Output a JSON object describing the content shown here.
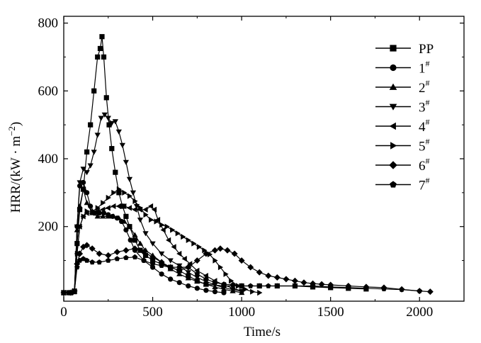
{
  "chart_data": {
    "type": "line",
    "title": "",
    "xlabel": "Time",
    "xlabel_unit": "s",
    "ylabel": "HRR/(kW · m",
    "ylabel_exp": "−2",
    "ylabel_close": ")",
    "xlim": [
      0,
      2250
    ],
    "ylim": [
      -20,
      820
    ],
    "xticks": [
      0,
      500,
      1000,
      1500,
      2000
    ],
    "yticks": [
      200,
      400,
      600,
      800
    ],
    "grid": false,
    "legend_position": "top-right",
    "series": [
      {
        "name": "PP",
        "sup": "",
        "marker": "square",
        "points": [
          [
            0,
            5
          ],
          [
            30,
            5
          ],
          [
            60,
            8
          ],
          [
            75,
            150
          ],
          [
            90,
            250
          ],
          [
            110,
            310
          ],
          [
            130,
            420
          ],
          [
            150,
            500
          ],
          [
            170,
            600
          ],
          [
            190,
            700
          ],
          [
            205,
            725
          ],
          [
            215,
            760
          ],
          [
            225,
            700
          ],
          [
            240,
            580
          ],
          [
            255,
            500
          ],
          [
            270,
            430
          ],
          [
            290,
            360
          ],
          [
            310,
            300
          ],
          [
            330,
            260
          ],
          [
            350,
            230
          ],
          [
            370,
            200
          ],
          [
            400,
            160
          ],
          [
            430,
            130
          ],
          [
            460,
            115
          ],
          [
            500,
            100
          ],
          [
            550,
            90
          ],
          [
            600,
            80
          ],
          [
            650,
            70
          ],
          [
            700,
            55
          ],
          [
            750,
            40
          ],
          [
            800,
            30
          ],
          [
            900,
            25
          ],
          [
            1000,
            25
          ],
          [
            1100,
            25
          ],
          [
            1200,
            25
          ],
          [
            1300,
            25
          ],
          [
            1400,
            22
          ],
          [
            1500,
            20
          ],
          [
            1600,
            18
          ],
          [
            1700,
            16
          ]
        ]
      },
      {
        "name": "1",
        "sup": "#",
        "marker": "circle",
        "points": [
          [
            0,
            5
          ],
          [
            40,
            5
          ],
          [
            60,
            10
          ],
          [
            75,
            200
          ],
          [
            90,
            320
          ],
          [
            110,
            330
          ],
          [
            130,
            300
          ],
          [
            150,
            260
          ],
          [
            175,
            240
          ],
          [
            200,
            240
          ],
          [
            225,
            240
          ],
          [
            250,
            235
          ],
          [
            275,
            230
          ],
          [
            300,
            225
          ],
          [
            325,
            215
          ],
          [
            350,
            190
          ],
          [
            375,
            160
          ],
          [
            400,
            130
          ],
          [
            450,
            100
          ],
          [
            500,
            80
          ],
          [
            550,
            60
          ],
          [
            600,
            45
          ],
          [
            650,
            35
          ],
          [
            700,
            25
          ],
          [
            750,
            18
          ],
          [
            800,
            12
          ],
          [
            850,
            8
          ],
          [
            900,
            5
          ]
        ]
      },
      {
        "name": "2",
        "sup": "#",
        "marker": "triangle-up",
        "points": [
          [
            0,
            5
          ],
          [
            40,
            5
          ],
          [
            60,
            10
          ],
          [
            75,
            190
          ],
          [
            90,
            260
          ],
          [
            110,
            310
          ],
          [
            130,
            270
          ],
          [
            160,
            240
          ],
          [
            190,
            230
          ],
          [
            220,
            230
          ],
          [
            250,
            230
          ],
          [
            280,
            230
          ],
          [
            310,
            225
          ],
          [
            340,
            215
          ],
          [
            370,
            200
          ],
          [
            400,
            175
          ],
          [
            430,
            150
          ],
          [
            460,
            130
          ],
          [
            500,
            115
          ],
          [
            550,
            95
          ],
          [
            600,
            75
          ],
          [
            650,
            60
          ],
          [
            700,
            48
          ],
          [
            750,
            38
          ],
          [
            800,
            30
          ],
          [
            850,
            22
          ],
          [
            900,
            15
          ],
          [
            950,
            10
          ],
          [
            1000,
            5
          ]
        ]
      },
      {
        "name": "3",
        "sup": "#",
        "marker": "triangle-down",
        "points": [
          [
            0,
            5
          ],
          [
            40,
            5
          ],
          [
            60,
            10
          ],
          [
            75,
            200
          ],
          [
            90,
            330
          ],
          [
            110,
            370
          ],
          [
            130,
            360
          ],
          [
            150,
            380
          ],
          [
            170,
            420
          ],
          [
            190,
            470
          ],
          [
            210,
            520
          ],
          [
            230,
            530
          ],
          [
            250,
            520
          ],
          [
            270,
            505
          ],
          [
            290,
            510
          ],
          [
            310,
            480
          ],
          [
            330,
            440
          ],
          [
            350,
            390
          ],
          [
            370,
            340
          ],
          [
            390,
            300
          ],
          [
            410,
            260
          ],
          [
            430,
            220
          ],
          [
            460,
            180
          ],
          [
            500,
            150
          ],
          [
            550,
            120
          ],
          [
            600,
            100
          ],
          [
            650,
            85
          ],
          [
            700,
            65
          ],
          [
            750,
            50
          ],
          [
            800,
            38
          ],
          [
            850,
            28
          ],
          [
            900,
            20
          ],
          [
            950,
            14
          ],
          [
            1000,
            10
          ]
        ]
      },
      {
        "name": "4",
        "sup": "#",
        "marker": "triangle-left",
        "points": [
          [
            0,
            5
          ],
          [
            40,
            5
          ],
          [
            60,
            10
          ],
          [
            75,
            120
          ],
          [
            90,
            200
          ],
          [
            110,
            230
          ],
          [
            130,
            240
          ],
          [
            160,
            240
          ],
          [
            190,
            245
          ],
          [
            220,
            250
          ],
          [
            250,
            255
          ],
          [
            280,
            260
          ],
          [
            310,
            260
          ],
          [
            340,
            260
          ],
          [
            370,
            255
          ],
          [
            400,
            250
          ],
          [
            430,
            250
          ],
          [
            460,
            250
          ],
          [
            490,
            260
          ],
          [
            510,
            250
          ],
          [
            530,
            220
          ],
          [
            560,
            190
          ],
          [
            590,
            160
          ],
          [
            620,
            140
          ],
          [
            650,
            120
          ],
          [
            680,
            105
          ],
          [
            710,
            90
          ],
          [
            750,
            70
          ],
          [
            800,
            55
          ],
          [
            850,
            40
          ],
          [
            900,
            28
          ],
          [
            950,
            18
          ],
          [
            1000,
            10
          ]
        ]
      },
      {
        "name": "5",
        "sup": "#",
        "marker": "triangle-right",
        "points": [
          [
            0,
            5
          ],
          [
            40,
            5
          ],
          [
            60,
            10
          ],
          [
            75,
            120
          ],
          [
            90,
            200
          ],
          [
            110,
            230
          ],
          [
            130,
            245
          ],
          [
            160,
            245
          ],
          [
            190,
            255
          ],
          [
            220,
            270
          ],
          [
            250,
            285
          ],
          [
            280,
            300
          ],
          [
            310,
            310
          ],
          [
            340,
            300
          ],
          [
            370,
            290
          ],
          [
            400,
            275
          ],
          [
            430,
            255
          ],
          [
            460,
            235
          ],
          [
            490,
            220
          ],
          [
            520,
            215
          ],
          [
            550,
            205
          ],
          [
            580,
            200
          ],
          [
            610,
            190
          ],
          [
            640,
            180
          ],
          [
            670,
            170
          ],
          [
            700,
            160
          ],
          [
            730,
            150
          ],
          [
            760,
            140
          ],
          [
            790,
            130
          ],
          [
            820,
            118
          ],
          [
            850,
            100
          ],
          [
            880,
            80
          ],
          [
            910,
            60
          ],
          [
            940,
            40
          ],
          [
            980,
            25
          ],
          [
            1020,
            15
          ],
          [
            1060,
            8
          ],
          [
            1100,
            5
          ]
        ]
      },
      {
        "name": "6",
        "sup": "#",
        "marker": "diamond",
        "points": [
          [
            0,
            5
          ],
          [
            40,
            5
          ],
          [
            60,
            10
          ],
          [
            75,
            90
          ],
          [
            90,
            120
          ],
          [
            110,
            140
          ],
          [
            130,
            145
          ],
          [
            160,
            135
          ],
          [
            200,
            120
          ],
          [
            250,
            115
          ],
          [
            300,
            125
          ],
          [
            350,
            130
          ],
          [
            400,
            135
          ],
          [
            450,
            125
          ],
          [
            500,
            110
          ],
          [
            550,
            95
          ],
          [
            600,
            80
          ],
          [
            650,
            70
          ],
          [
            700,
            80
          ],
          [
            750,
            100
          ],
          [
            800,
            120
          ],
          [
            850,
            130
          ],
          [
            880,
            135
          ],
          [
            920,
            130
          ],
          [
            960,
            120
          ],
          [
            1000,
            100
          ],
          [
            1050,
            80
          ],
          [
            1100,
            65
          ],
          [
            1150,
            55
          ],
          [
            1200,
            50
          ],
          [
            1250,
            45
          ],
          [
            1300,
            40
          ],
          [
            1350,
            35
          ],
          [
            1400,
            32
          ],
          [
            1450,
            30
          ],
          [
            1500,
            28
          ],
          [
            1600,
            25
          ],
          [
            1700,
            22
          ],
          [
            1800,
            20
          ],
          [
            1900,
            15
          ],
          [
            2000,
            10
          ],
          [
            2060,
            8
          ]
        ]
      },
      {
        "name": "7",
        "sup": "#",
        "marker": "pentagon",
        "points": [
          [
            0,
            5
          ],
          [
            40,
            5
          ],
          [
            60,
            10
          ],
          [
            75,
            80
          ],
          [
            90,
            100
          ],
          [
            110,
            105
          ],
          [
            130,
            100
          ],
          [
            160,
            95
          ],
          [
            200,
            95
          ],
          [
            250,
            100
          ],
          [
            300,
            105
          ],
          [
            350,
            108
          ],
          [
            400,
            110
          ],
          [
            450,
            100
          ],
          [
            500,
            90
          ],
          [
            550,
            85
          ],
          [
            600,
            80
          ],
          [
            650,
            80
          ],
          [
            700,
            80
          ],
          [
            750,
            60
          ],
          [
            800,
            45
          ],
          [
            850,
            35
          ],
          [
            900,
            30
          ],
          [
            950,
            28
          ],
          [
            1000,
            25
          ],
          [
            1050,
            25
          ],
          [
            1100,
            25
          ],
          [
            1150,
            25
          ],
          [
            1200,
            25
          ],
          [
            1300,
            25
          ],
          [
            1400,
            25
          ],
          [
            1500,
            22
          ],
          [
            1600,
            20
          ],
          [
            1700,
            18
          ],
          [
            1800,
            16
          ],
          [
            1900,
            14
          ],
          [
            2000,
            10
          ]
        ]
      }
    ]
  }
}
